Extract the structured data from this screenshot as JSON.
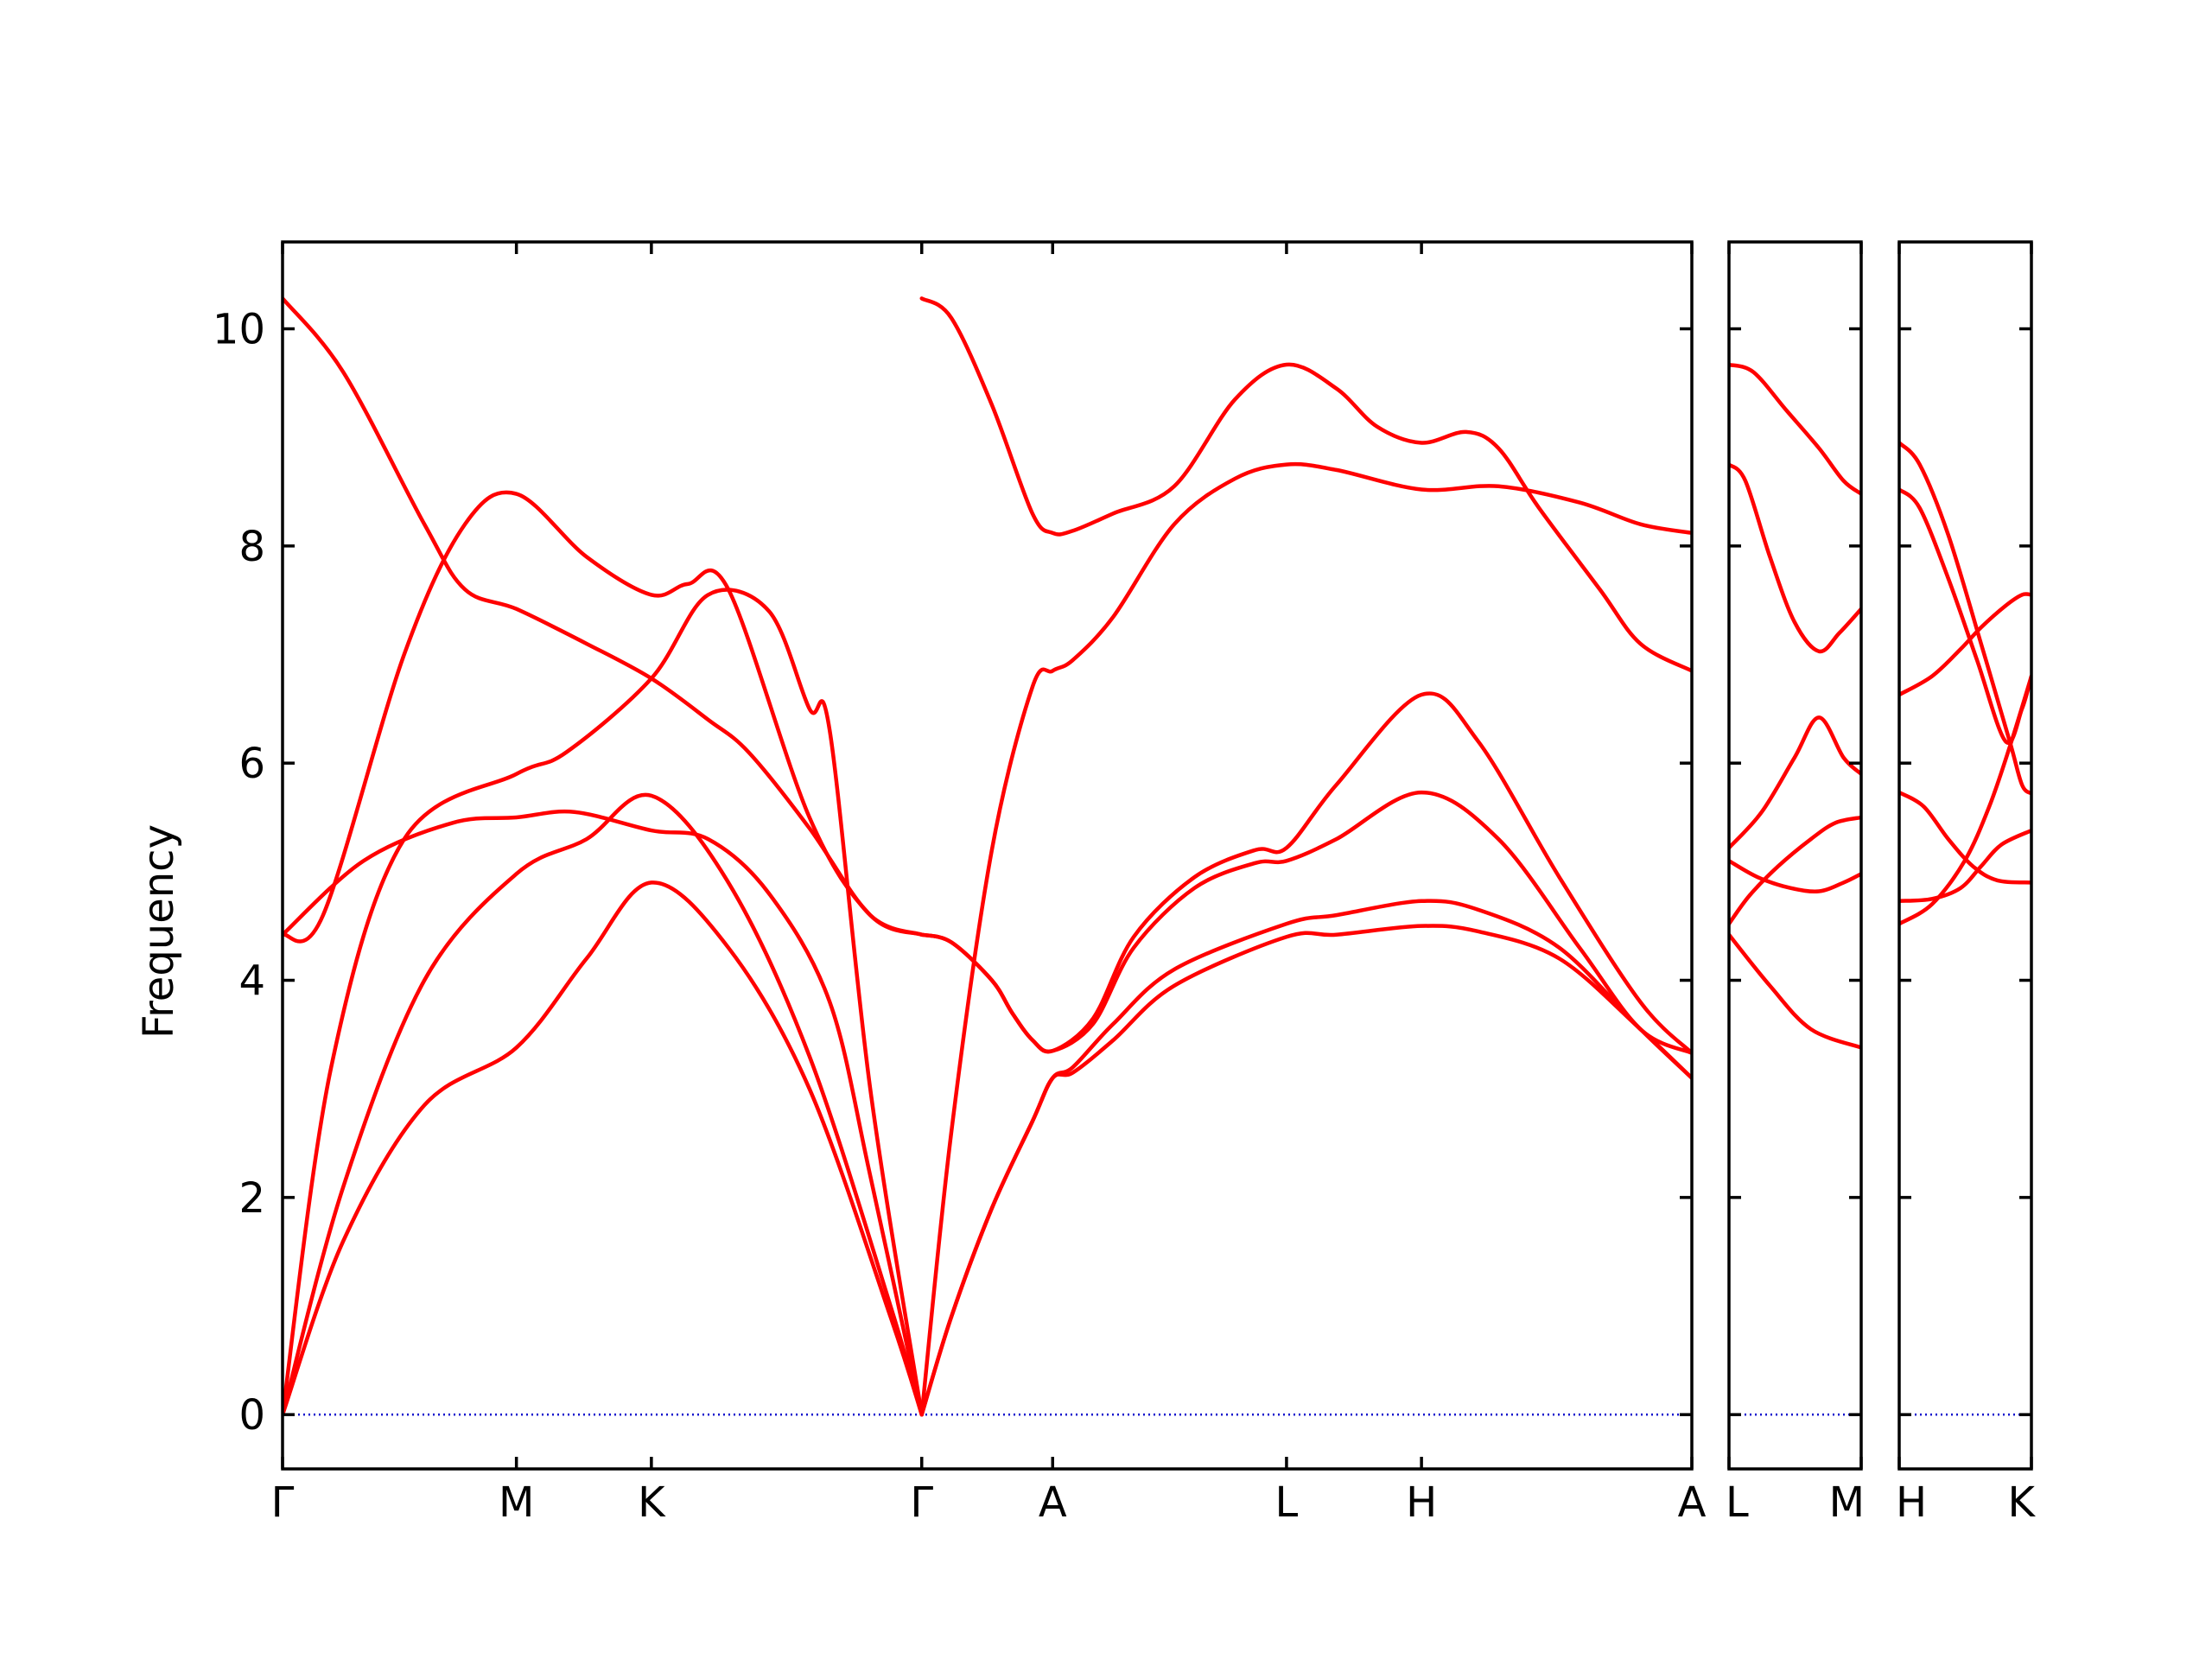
{
  "chart_data": {
    "type": "line",
    "title": "",
    "xlabel": "",
    "ylabel": "Frequency",
    "ylim": [
      -0.5,
      10.8
    ],
    "yticks": [
      "0",
      "2",
      "4",
      "6",
      "8",
      "10"
    ],
    "ytick_values": [
      0,
      2,
      4,
      6,
      8,
      10
    ],
    "grid": false,
    "colors": {
      "bands": "#ff0000",
      "zero_line": "#0000cc",
      "axes": "#000000"
    },
    "kpoint_labels": [
      "Γ",
      "M",
      "K",
      "Γ",
      "A",
      "L",
      "H",
      "A",
      "L",
      "M",
      "H",
      "K"
    ],
    "panels": [
      {
        "name": "Γ-M-K-Γ-A-L-H-A",
        "kpoints": [
          {
            "label": "Γ",
            "x": 0.0
          },
          {
            "label": "M",
            "x": 0.577
          },
          {
            "label": "K",
            "x": 0.91
          },
          {
            "label": "Γ",
            "x": 1.577
          },
          {
            "label": "A",
            "x": 1.9
          },
          {
            "label": "L",
            "x": 2.477
          },
          {
            "label": "H",
            "x": 2.81
          },
          {
            "label": "A",
            "x": 3.477
          }
        ],
        "xlim": [
          0.0,
          3.477
        ],
        "bands": [
          {
            "x": [
              0,
              0.15,
              0.35,
              0.577,
              0.75,
              0.91,
              1.1,
              1.3,
              1.5,
              1.577
            ],
            "y": [
              0,
              1.6,
              2.85,
              3.38,
              4.2,
              4.9,
              4.3,
              3.0,
              0.9,
              0
            ]
          },
          {
            "x": [
              0,
              0.15,
              0.35,
              0.577,
              0.75,
              0.91,
              1.1,
              1.3,
              1.5,
              1.577
            ],
            "y": [
              0,
              2.1,
              4.0,
              4.98,
              5.3,
              5.7,
              4.9,
              3.3,
              1.0,
              0
            ]
          },
          {
            "x": [
              0,
              0.12,
              0.3,
              0.577,
              0.7,
              0.91,
              1.05,
              1.2,
              1.3,
              1.35,
              1.45,
              1.577
            ],
            "y": [
              0,
              3.2,
              5.3,
              5.9,
              6.1,
              6.78,
              7.55,
              7.4,
              6.5,
              6.3,
              3.0,
              0
            ]
          },
          {
            "x": [
              0,
              0.2,
              0.42,
              0.577,
              0.72,
              0.91,
              1.05,
              1.2,
              1.35,
              1.45,
              1.577
            ],
            "y": [
              4.42,
              5.1,
              5.45,
              5.5,
              5.55,
              5.38,
              5.3,
              4.8,
              3.8,
              2.2,
              0
            ]
          },
          {
            "x": [
              0,
              0.1,
              0.3,
              0.45,
              0.577,
              0.75,
              0.91,
              1.0,
              1.1,
              1.3,
              1.45,
              1.577
            ],
            "y": [
              4.42,
              4.6,
              7.0,
              8.2,
              8.48,
              7.9,
              7.55,
              7.65,
              7.6,
              5.5,
              4.6,
              4.42
            ]
          },
          {
            "x": [
              0,
              0.15,
              0.35,
              0.45,
              0.577,
              0.75,
              0.91,
              1.05,
              1.15,
              1.3,
              1.45,
              1.577
            ],
            "y": [
              10.28,
              9.6,
              8.2,
              7.6,
              7.42,
              7.1,
              6.78,
              6.4,
              6.1,
              5.4,
              4.6,
              4.42
            ]
          },
          {
            "x": [
              1.577,
              1.65,
              1.75,
              1.85,
              1.9,
              1.95,
              2.05,
              2.2,
              2.477,
              2.6,
              2.81,
              2.95,
              3.15,
              3.35,
              3.477
            ],
            "y": [
              0,
              0.9,
              1.9,
              2.7,
              3.1,
              3.15,
              3.45,
              3.95,
              4.4,
              4.42,
              4.5,
              4.45,
              4.2,
              3.55,
              3.1
            ]
          },
          {
            "x": [
              1.577,
              1.65,
              1.75,
              1.85,
              1.9,
              1.95,
              2.05,
              2.2,
              2.477,
              2.6,
              2.81,
              2.95,
              3.15,
              3.35,
              3.477
            ],
            "y": [
              0,
              0.9,
              1.9,
              2.7,
              3.1,
              3.2,
              3.6,
              4.1,
              4.52,
              4.6,
              4.73,
              4.65,
              4.3,
              3.55,
              3.1
            ]
          },
          {
            "x": [
              1.577,
              1.65,
              1.75,
              1.85,
              1.9,
              1.95,
              2.05,
              2.2,
              2.35,
              2.477,
              2.6,
              2.81,
              3.0,
              3.2,
              3.35,
              3.477
            ],
            "y": [
              0,
              2.6,
              5.2,
              6.7,
              6.85,
              6.95,
              7.35,
              8.2,
              8.62,
              8.75,
              8.7,
              8.52,
              8.55,
              8.4,
              8.2,
              8.12
            ]
          },
          {
            "x": [
              1.577,
              1.65,
              1.75,
              1.8,
              1.85,
              1.9,
              2.0,
              2.1,
              2.25,
              2.4,
              2.477,
              2.6,
              2.81,
              3.0,
              3.2,
              3.35,
              3.477
            ],
            "y": [
              4.42,
              4.35,
              4.0,
              3.7,
              3.45,
              3.35,
              3.6,
              4.3,
              4.85,
              5.08,
              5.1,
              5.3,
              5.73,
              5.3,
              4.3,
              3.55,
              3.33
            ]
          },
          {
            "x": [
              1.577,
              1.65,
              1.75,
              1.8,
              1.85,
              1.9,
              2.0,
              2.1,
              2.25,
              2.4,
              2.477,
              2.6,
              2.81,
              2.95,
              3.15,
              3.35,
              3.477
            ],
            "y": [
              4.42,
              4.35,
              4.0,
              3.7,
              3.45,
              3.35,
              3.65,
              4.4,
              4.95,
              5.2,
              5.22,
              5.8,
              6.63,
              6.2,
              4.95,
              3.8,
              3.33
            ]
          },
          {
            "x": [
              1.577,
              1.65,
              1.75,
              1.85,
              1.9,
              1.95,
              2.05,
              2.2,
              2.35,
              2.477,
              2.6,
              2.7,
              2.81,
              2.92,
              3.0,
              3.1,
              3.25,
              3.35,
              3.477
            ],
            "y": [
              10.28,
              10.1,
              9.3,
              8.3,
              8.12,
              8.14,
              8.3,
              8.55,
              9.35,
              9.67,
              9.45,
              9.1,
              8.95,
              9.05,
              8.9,
              8.35,
              7.6,
              7.1,
              6.85
            ]
          }
        ]
      },
      {
        "name": "L-M",
        "kpoints": [
          {
            "label": "L",
            "x": 0.0
          },
          {
            "label": "M",
            "x": 0.323
          }
        ],
        "xlim": [
          0.0,
          0.323
        ],
        "bands": [
          {
            "x": [
              0,
              0.1,
              0.2,
              0.323
            ],
            "y": [
              4.42,
              3.95,
              3.55,
              3.38
            ]
          },
          {
            "x": [
              0,
              0.05,
              0.12,
              0.2,
              0.26,
              0.323
            ],
            "y": [
              4.52,
              4.78,
              5.05,
              5.3,
              5.45,
              5.5
            ]
          },
          {
            "x": [
              0,
              0.07,
              0.15,
              0.22,
              0.28,
              0.323
            ],
            "y": [
              5.1,
              4.95,
              4.85,
              4.82,
              4.9,
              4.98
            ]
          },
          {
            "x": [
              0,
              0.08,
              0.16,
              0.22,
              0.28,
              0.323
            ],
            "y": [
              5.22,
              5.55,
              6.05,
              6.42,
              6.05,
              5.9
            ]
          },
          {
            "x": [
              0,
              0.04,
              0.1,
              0.16,
              0.22,
              0.27,
              0.323
            ],
            "y": [
              8.75,
              8.6,
              7.9,
              7.3,
              7.03,
              7.2,
              7.42
            ]
          },
          {
            "x": [
              0,
              0.06,
              0.14,
              0.22,
              0.28,
              0.323
            ],
            "y": [
              9.67,
              9.6,
              9.25,
              8.9,
              8.6,
              8.48
            ]
          }
        ]
      },
      {
        "name": "H-K",
        "kpoints": [
          {
            "label": "H",
            "x": 0.0
          },
          {
            "label": "K",
            "x": 0.323
          }
        ],
        "xlim": [
          0.0,
          0.323
        ],
        "bands": [
          {
            "x": [
              0,
              0.08,
              0.16,
              0.22,
              0.27,
              0.323
            ],
            "y": [
              4.52,
              4.7,
              5.1,
              5.6,
              6.15,
              6.8
            ]
          },
          {
            "x": [
              0,
              0.08,
              0.15,
              0.2,
              0.25,
              0.323
            ],
            "y": [
              4.73,
              4.75,
              4.85,
              5.05,
              5.25,
              5.38
            ]
          },
          {
            "x": [
              0,
              0.06,
              0.12,
              0.18,
              0.24,
              0.323
            ],
            "y": [
              5.73,
              5.6,
              5.3,
              5.05,
              4.92,
              4.9
            ]
          },
          {
            "x": [
              0,
              0.08,
              0.15,
              0.2,
              0.26,
              0.3,
              0.323
            ],
            "y": [
              6.63,
              6.8,
              7.05,
              7.25,
              7.45,
              7.55,
              7.55
            ]
          },
          {
            "x": [
              0,
              0.05,
              0.12,
              0.19,
              0.26,
              0.3,
              0.323
            ],
            "y": [
              8.52,
              8.35,
              7.7,
              6.95,
              6.2,
              6.5,
              6.8
            ]
          },
          {
            "x": [
              0,
              0.05,
              0.12,
              0.2,
              0.27,
              0.3,
              0.323
            ],
            "y": [
              8.95,
              8.75,
              8.1,
              7.1,
              6.2,
              5.8,
              5.72
            ]
          }
        ]
      }
    ]
  }
}
